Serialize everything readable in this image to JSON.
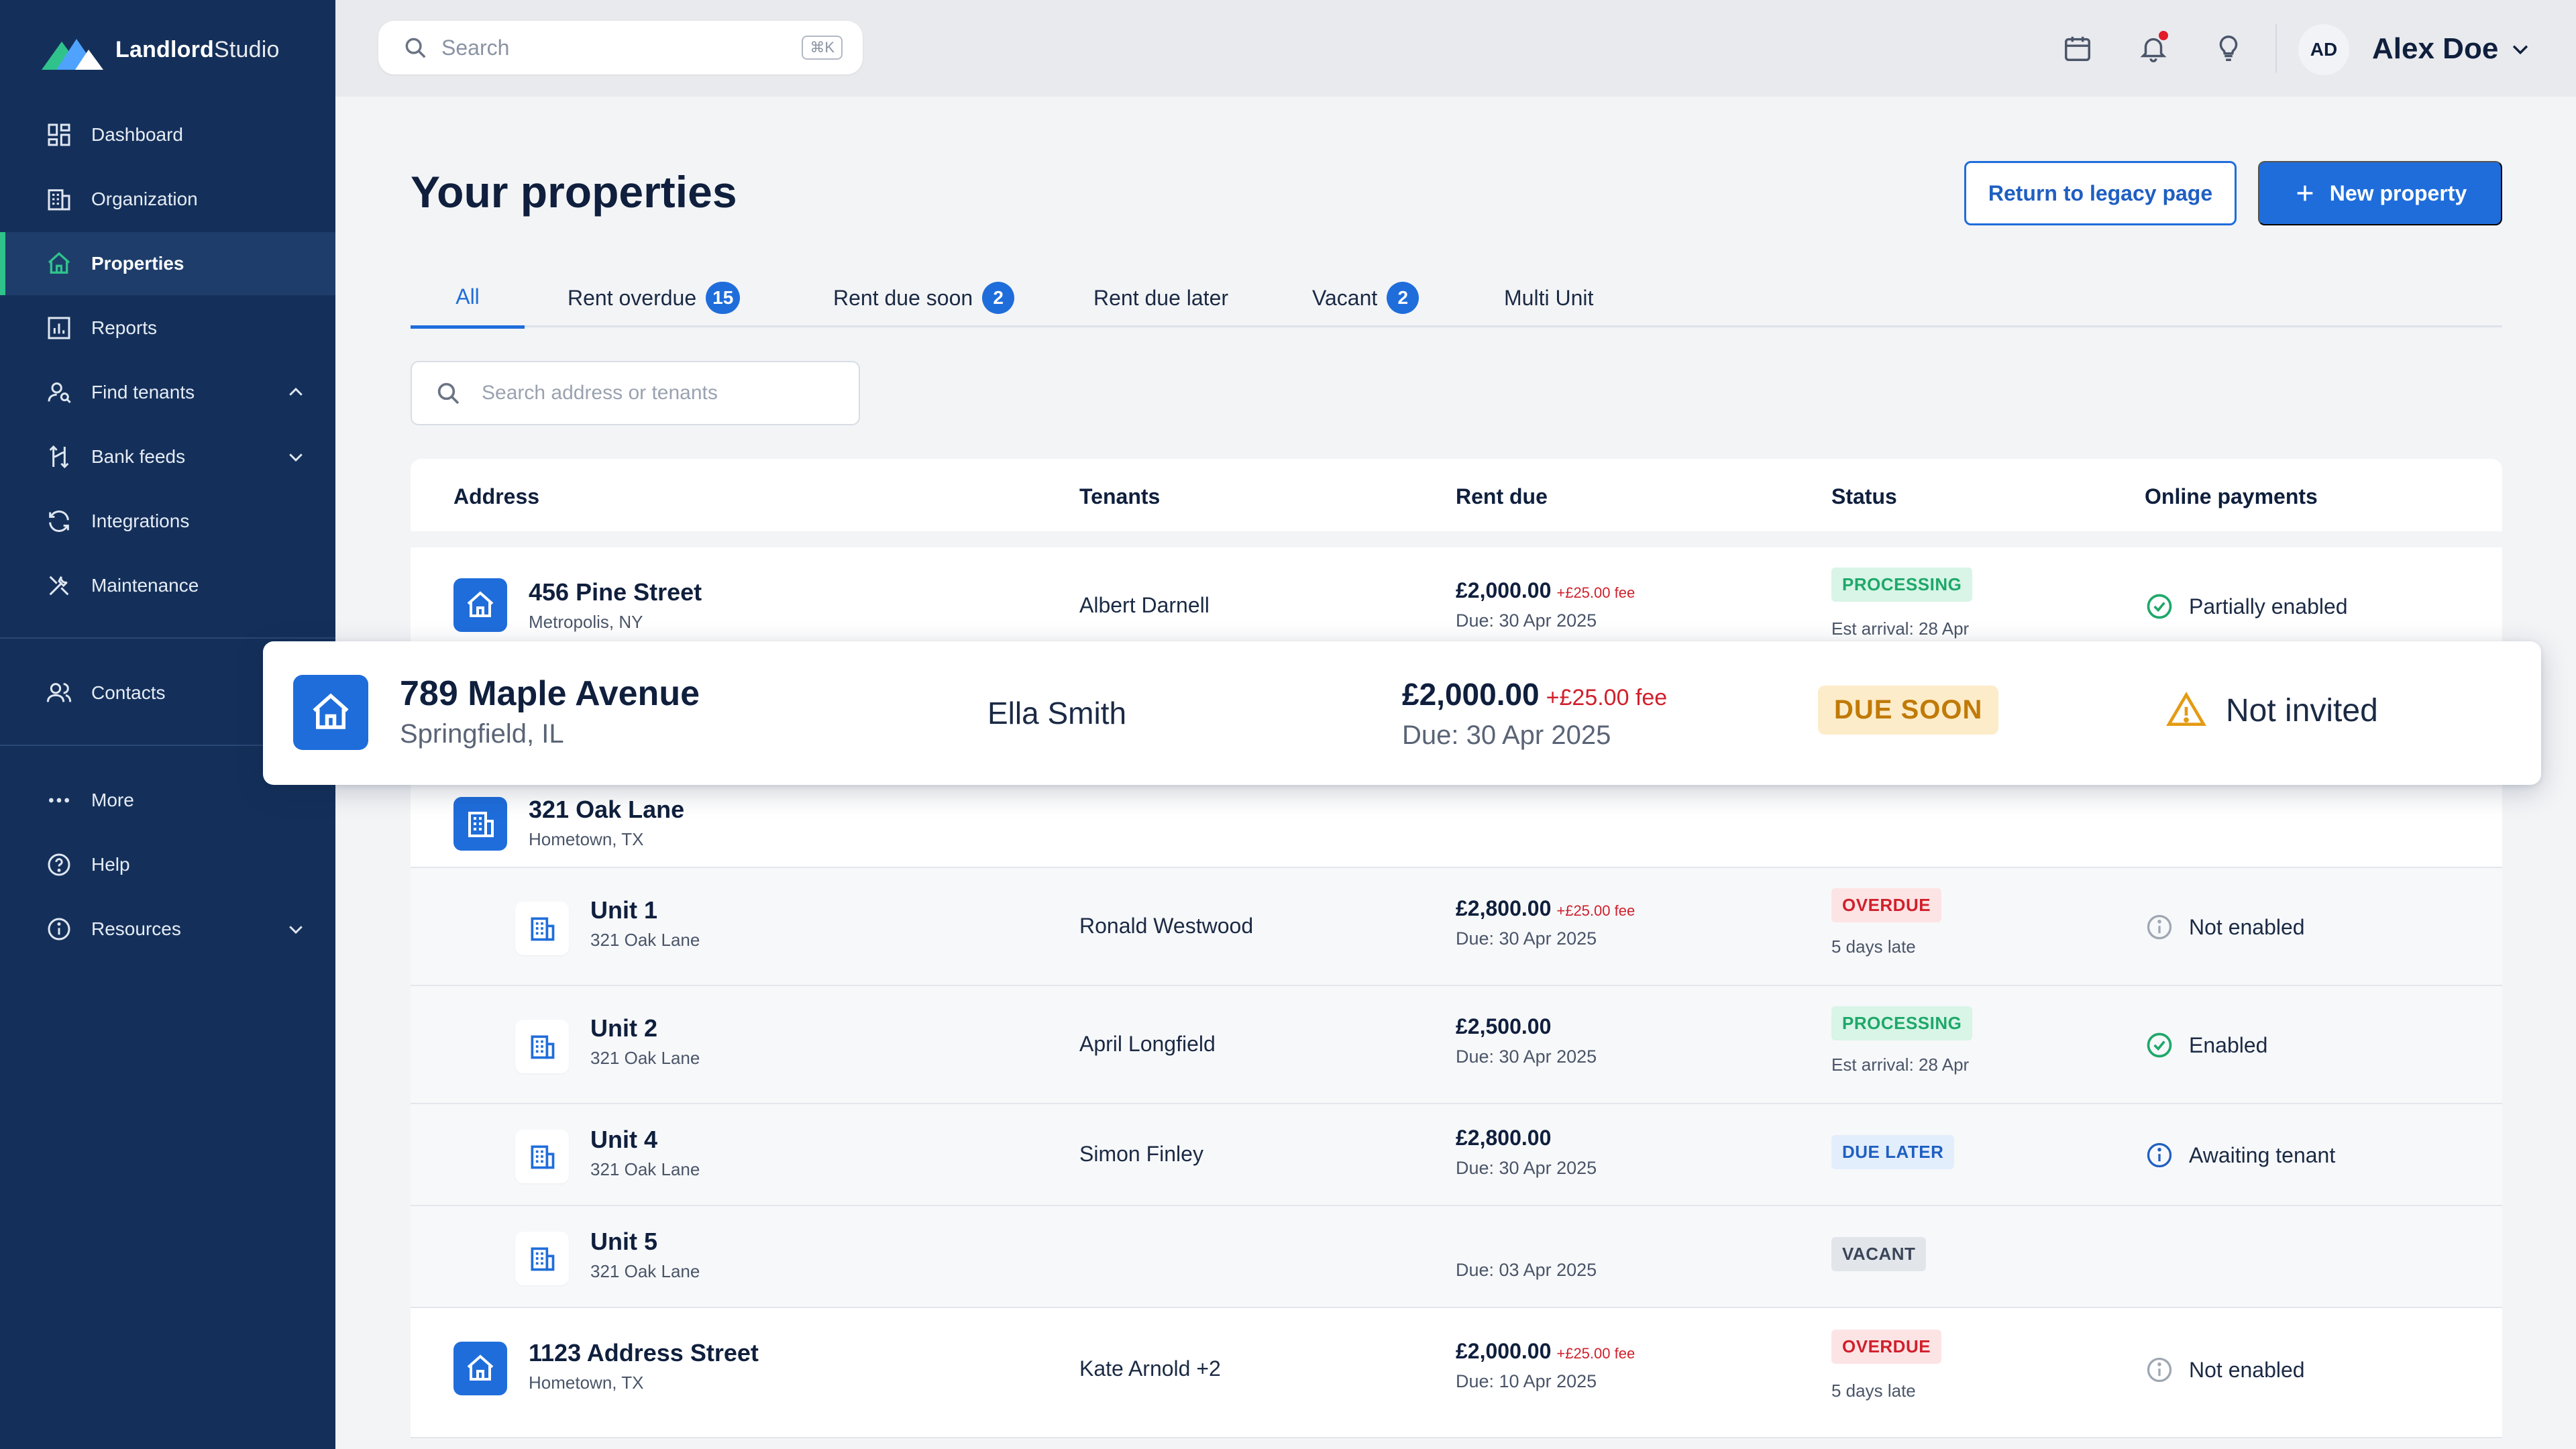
{
  "brand": {
    "name_bold": "Landlord",
    "name_light": "Studio"
  },
  "sidebar": {
    "items": [
      {
        "label": "Dashboard",
        "icon": "dashboard-icon"
      },
      {
        "label": "Organization",
        "icon": "building-icon"
      },
      {
        "label": "Properties",
        "icon": "home-icon",
        "active": true
      },
      {
        "label": "Reports",
        "icon": "chart-icon"
      },
      {
        "label": "Find tenants",
        "icon": "find-user-icon"
      },
      {
        "label": "Bank feeds",
        "icon": "bank-feeds-icon"
      },
      {
        "label": "Integrations",
        "icon": "sync-icon"
      },
      {
        "label": "Maintenance",
        "icon": "tools-icon"
      },
      {
        "label": "Contacts",
        "icon": "contacts-icon"
      },
      {
        "label": "More",
        "icon": "more-icon"
      },
      {
        "label": "Help",
        "icon": "help-icon"
      },
      {
        "label": "Resources",
        "icon": "info-icon"
      }
    ]
  },
  "topbar": {
    "search_placeholder": "Search",
    "search_shortcut": "⌘K",
    "user_initials": "AD",
    "user_name": "Alex Doe"
  },
  "main": {
    "title": "Your properties",
    "legacy_button": "Return to legacy page",
    "new_button": "New property",
    "tabs": [
      {
        "label": "All",
        "count": null,
        "active": true
      },
      {
        "label": "Rent overdue",
        "count": "15"
      },
      {
        "label": "Rent due soon",
        "count": "2"
      },
      {
        "label": "Rent due later",
        "count": null
      },
      {
        "label": "Vacant",
        "count": "2"
      },
      {
        "label": "Multi Unit",
        "count": null
      }
    ],
    "filter_placeholder": "Search address or tenants",
    "columns": [
      "Address",
      "Tenants",
      "Rent due",
      "Status",
      "Online payments"
    ]
  },
  "rows": [
    {
      "title": "456 Pine Street",
      "sub": "Metropolis, NY",
      "tenant": "Albert Darnell",
      "amount": "£2,000.00",
      "fee": "+£25.00 fee",
      "due": "Due: 30 Apr 2025",
      "status": "PROCESSING",
      "status_note": "Est arrival: 28 Apr",
      "payment": "Partially enabled"
    },
    {
      "title": "321 Oak Lane",
      "sub": "Hometown, TX"
    },
    {
      "title": "Unit 1",
      "sub": "321 Oak Lane",
      "tenant": "Ronald Westwood",
      "amount": "£2,800.00",
      "fee": "+£25.00 fee",
      "due": "Due: 30 Apr 2025",
      "status": "OVERDUE",
      "status_note": "5 days late",
      "payment": "Not enabled"
    },
    {
      "title": "Unit 2",
      "sub": "321 Oak Lane",
      "tenant": "April Longfield",
      "amount": "£2,500.00",
      "due": "Due: 30 Apr 2025",
      "status": "PROCESSING",
      "status_note": "Est arrival: 28 Apr",
      "payment": "Enabled"
    },
    {
      "title": "Unit 4",
      "sub": "321 Oak Lane",
      "tenant": "Simon Finley",
      "amount": "£2,800.00",
      "due": "Due: 30 Apr 2025",
      "status": "DUE LATER",
      "payment": "Awaiting tenant"
    },
    {
      "title": "Unit 5",
      "sub": "321 Oak Lane",
      "due": "Due: 03 Apr 2025",
      "status": "VACANT"
    },
    {
      "title": "1123 Address Street",
      "sub": "Hometown, TX",
      "tenant": "Kate Arnold +2",
      "amount": "£2,000.00",
      "fee": "+£25.00 fee",
      "due": "Due: 10 Apr 2025",
      "status": "OVERDUE",
      "status_note": "5 days late",
      "payment": "Not enabled"
    }
  ],
  "floating_card": {
    "title": "789 Maple Avenue",
    "sub": "Springfield, IL",
    "tenant": "Ella Smith",
    "amount": "£2,000.00",
    "fee": "+£25.00 fee",
    "due": "Due: 30 Apr 2025",
    "status": "DUE SOON",
    "payment": "Not invited"
  },
  "colors": {
    "sidebar": "#14305a",
    "accent": "#1f6ddb",
    "active_marker": "#2fc28b",
    "overdue": "#d0202c",
    "processing": "#1ea86a",
    "due_soon": "#c07a06"
  }
}
